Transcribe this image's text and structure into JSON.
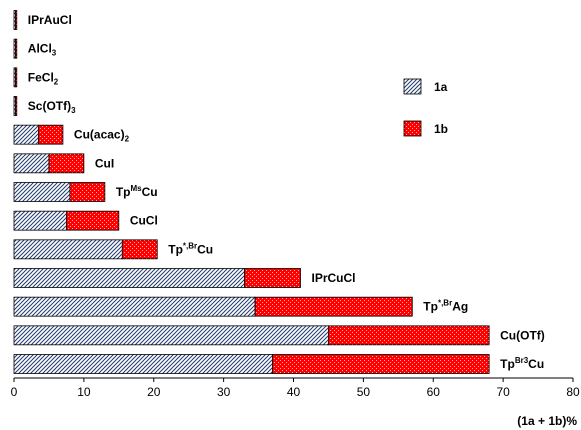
{
  "chart_data": {
    "type": "bar",
    "orientation": "horizontal",
    "stacked": true,
    "categories": [
      {
        "text": "IPrAuCl"
      },
      {
        "text": "AlCl",
        "sub": "3"
      },
      {
        "text": "FeCl",
        "sub": "2"
      },
      {
        "text": "Sc(OTf)",
        "sub": "3"
      },
      {
        "text": "Cu(acac)",
        "sub": "2"
      },
      {
        "text": "CuI"
      },
      {
        "text": "Tp",
        "sup": "Ms",
        "tail": "Cu"
      },
      {
        "text": "CuCl"
      },
      {
        "text": "Tp",
        "sup": "*,Br",
        "tail": "Cu"
      },
      {
        "text": "IPrCuCl"
      },
      {
        "text": "Tp",
        "sup": "*,Br",
        "tail": "Ag"
      },
      {
        "text": "Cu(OTf)"
      },
      {
        "text": "Tp",
        "sup": "Br3",
        "tail": "Cu"
      }
    ],
    "series": [
      {
        "name": "1a",
        "color": "#1f3a6e",
        "pattern": "diagonal-hatch",
        "values": [
          0.2,
          0.2,
          0.2,
          0.2,
          3.5,
          5,
          8,
          7.5,
          15.5,
          33,
          34.5,
          45,
          37
        ]
      },
      {
        "name": "1b",
        "color": "#ff0000",
        "pattern": "dotted-red",
        "values": [
          0.2,
          0.2,
          0.2,
          0.2,
          3.5,
          5,
          5,
          7.5,
          5,
          8,
          22.5,
          23,
          31
        ]
      }
    ],
    "xlabel": "(1a + 1b)%",
    "ylabel": "",
    "xlim": [
      0,
      80
    ],
    "xticks": [
      0,
      10,
      20,
      30,
      40,
      50,
      60,
      70,
      80
    ],
    "grid": false,
    "legend_position": "right"
  }
}
